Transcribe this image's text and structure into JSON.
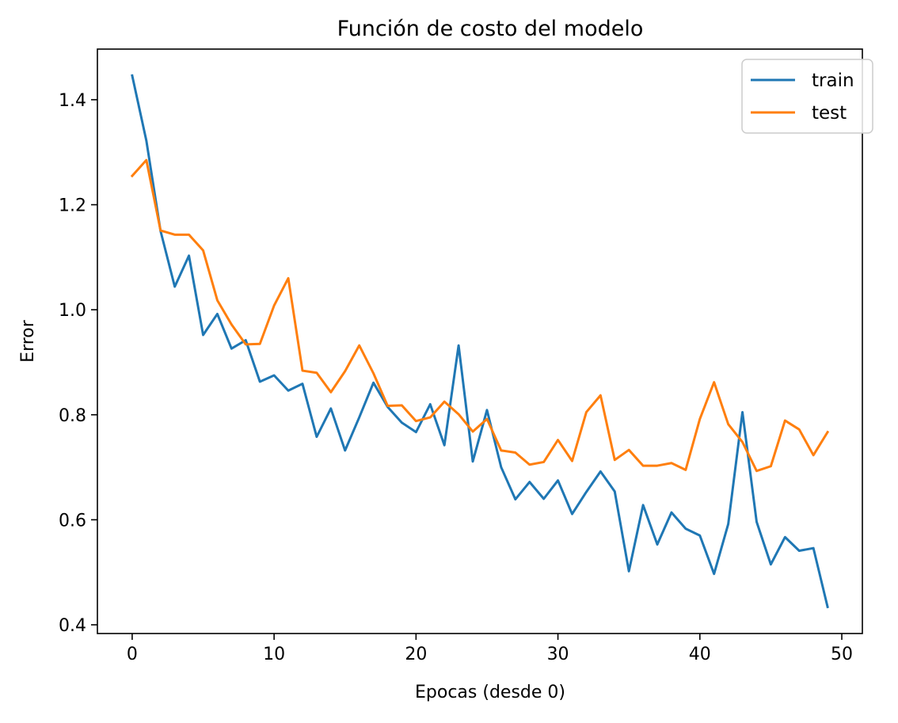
{
  "chart_data": {
    "type": "line",
    "title": "Función de costo del modelo",
    "xlabel": "Epocas (desde 0)",
    "ylabel": "Error",
    "xlim": [
      -2.45,
      51.45
    ],
    "ylim": [
      0.3834,
      1.4964
    ],
    "xticks": [
      0,
      10,
      20,
      30,
      40,
      50
    ],
    "yticks": [
      0.4,
      0.6,
      0.8,
      1.0,
      1.2,
      1.4
    ],
    "xtick_labels": [
      "0",
      "10",
      "20",
      "30",
      "40",
      "50"
    ],
    "ytick_labels": [
      "0.4",
      "0.6",
      "0.8",
      "1.0",
      "1.2",
      "1.4"
    ],
    "grid": false,
    "legend_position": "top-right",
    "x": [
      0,
      1,
      2,
      3,
      4,
      5,
      6,
      7,
      8,
      9,
      10,
      11,
      12,
      13,
      14,
      15,
      16,
      17,
      18,
      19,
      20,
      21,
      22,
      23,
      24,
      25,
      26,
      27,
      28,
      29,
      30,
      31,
      32,
      33,
      34,
      35,
      36,
      37,
      38,
      39,
      40,
      41,
      42,
      43,
      44,
      45,
      46,
      47,
      48,
      49
    ],
    "series": [
      {
        "name": "train",
        "color": "#1f77b4",
        "values": [
          1.446,
          1.322,
          1.15,
          1.044,
          1.103,
          0.952,
          0.992,
          0.926,
          0.942,
          0.863,
          0.875,
          0.846,
          0.859,
          0.758,
          0.812,
          0.732,
          0.795,
          0.861,
          0.815,
          0.785,
          0.767,
          0.82,
          0.742,
          0.932,
          0.711,
          0.809,
          0.7,
          0.639,
          0.672,
          0.64,
          0.675,
          0.611,
          0.653,
          0.692,
          0.654,
          0.502,
          0.628,
          0.553,
          0.614,
          0.583,
          0.57,
          0.497,
          0.592,
          0.805,
          0.596,
          0.515,
          0.567,
          0.541,
          0.546,
          0.434
        ]
      },
      {
        "name": "test",
        "color": "#ff7f0e",
        "values": [
          1.255,
          1.285,
          1.151,
          1.143,
          1.143,
          1.113,
          1.018,
          0.972,
          0.934,
          0.935,
          1.008,
          1.06,
          0.884,
          0.88,
          0.843,
          0.883,
          0.932,
          0.879,
          0.817,
          0.818,
          0.788,
          0.795,
          0.825,
          0.801,
          0.768,
          0.792,
          0.732,
          0.728,
          0.705,
          0.71,
          0.752,
          0.712,
          0.805,
          0.837,
          0.714,
          0.733,
          0.703,
          0.703,
          0.708,
          0.695,
          0.792,
          0.862,
          0.782,
          0.748,
          0.693,
          0.702,
          0.789,
          0.772,
          0.723,
          0.767
        ]
      }
    ]
  }
}
